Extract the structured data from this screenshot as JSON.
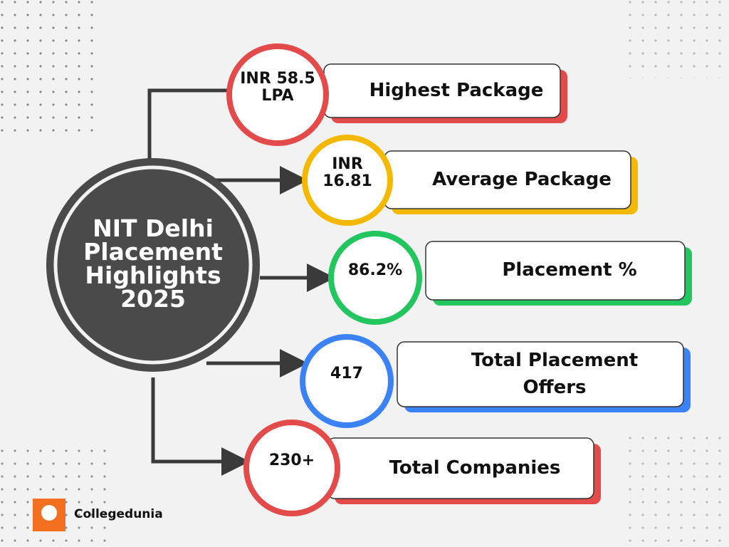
{
  "header": {
    "title": "NIT Delhi Placement Highlights 2025"
  },
  "items": [
    {
      "value": "INR 58.5 LPA",
      "label": "Highest Package"
    },
    {
      "value": "INR 16.81",
      "label": "Average Package"
    },
    {
      "value": "86.2%",
      "label": "Placement %"
    },
    {
      "value": "417",
      "label": "Total Placement Offers"
    },
    {
      "value": "230+",
      "label": "Total Companies"
    }
  ],
  "brand": {
    "name": "Collegedunia"
  }
}
